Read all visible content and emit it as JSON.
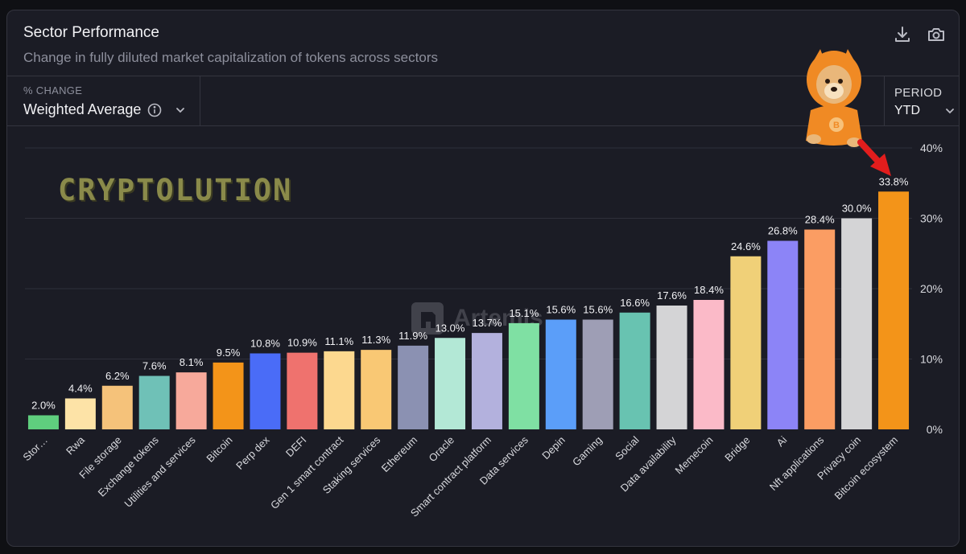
{
  "header": {
    "title": "Sector Performance",
    "subtitle": "Change in fully diluted market capitalization of tokens across sectors"
  },
  "icons": {
    "download": "download-icon",
    "camera": "camera-icon",
    "info": "info-icon",
    "chevron": "chevron-down-icon"
  },
  "controls": {
    "metric_label": "% CHANGE",
    "metric_value": "Weighted Average",
    "period_label": "PERIOD",
    "period_value": "YTD"
  },
  "overlays": {
    "watermark_text": "CRYPTOLUTION",
    "brand_watermark": "Artemis"
  },
  "chart_data": {
    "type": "bar",
    "title": "",
    "xlabel": "",
    "ylabel": "",
    "ylim": [
      0,
      40
    ],
    "yticks": [
      0,
      10,
      20,
      30,
      40
    ],
    "ytick_labels": [
      "0%",
      "10%",
      "20%",
      "30%",
      "40%"
    ],
    "grid": true,
    "categories": [
      "Stor…",
      "Rwa",
      "File storage",
      "Exchange tokens",
      "Utilities and services",
      "Bitcoin",
      "Perp dex",
      "DEFI",
      "Gen 1 smart contract",
      "Staking services",
      "Ethereum",
      "Oracle",
      "Smart contract platform",
      "Data services",
      "Depin",
      "Gaming",
      "Social",
      "Data availability",
      "Memecoin",
      "Bridge",
      "Ai",
      "Nft applications",
      "Privacy coin",
      "Bitcoin ecosystem"
    ],
    "values": [
      2.0,
      4.4,
      6.2,
      7.6,
      8.1,
      9.5,
      10.8,
      10.9,
      11.1,
      11.3,
      11.9,
      13.0,
      13.7,
      15.1,
      15.6,
      15.6,
      16.6,
      17.6,
      18.4,
      24.6,
      26.8,
      28.4,
      30.0,
      33.8
    ],
    "value_labels": [
      "2.0%",
      "4.4%",
      "6.2%",
      "7.6%",
      "8.1%",
      "9.5%",
      "10.8%",
      "10.9%",
      "11.1%",
      "11.3%",
      "11.9%",
      "13.0%",
      "13.7%",
      "15.1%",
      "15.6%",
      "15.6%",
      "16.6%",
      "17.6%",
      "18.4%",
      "24.6%",
      "26.8%",
      "28.4%",
      "30.0%",
      "33.8%"
    ],
    "colors": [
      "#5fce7e",
      "#fde3a7",
      "#f5c27a",
      "#6fc1b7",
      "#f7a99b",
      "#f39419",
      "#4a6cf7",
      "#ef726e",
      "#fcd88f",
      "#f9c874",
      "#8b91b2",
      "#b3e8d6",
      "#b3b1dd",
      "#7fe0a3",
      "#5b9ef9",
      "#9e9eb5",
      "#68c3b1",
      "#d4d4d6",
      "#fbbac8",
      "#f0d078",
      "#8c84f7",
      "#fb9d63",
      "#d4d4d6",
      "#f39419"
    ]
  }
}
